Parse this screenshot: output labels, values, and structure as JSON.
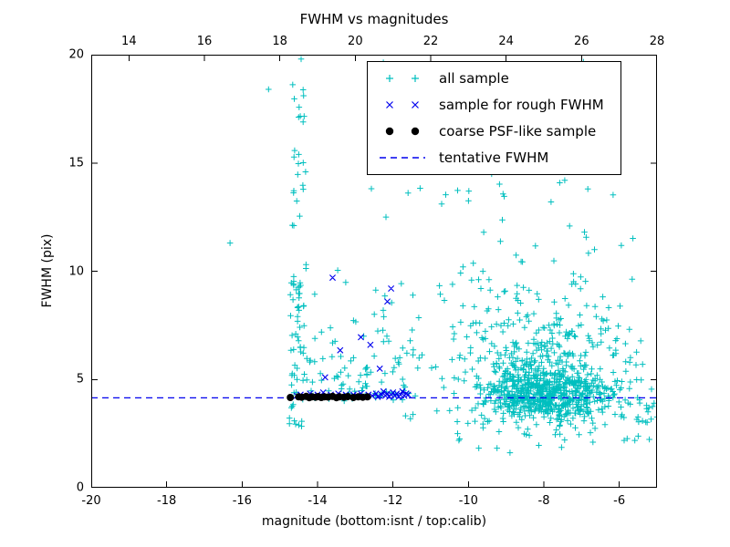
{
  "title": "FWHM vs magnitudes",
  "axes": {
    "xlabel": "magnitude (bottom:isnt / top:calib)",
    "ylabel": "FWHM (pix)",
    "xlim": [
      -20,
      -5
    ],
    "ylim": [
      0,
      20
    ],
    "x_bottom_ticks": [
      -20,
      -18,
      -16,
      -14,
      -12,
      -10,
      -8,
      -6
    ],
    "x_top_ticks": [
      14,
      16,
      18,
      20,
      22,
      24,
      26,
      28
    ],
    "y_ticks": [
      0,
      5,
      10,
      15,
      20
    ],
    "top_axis_offset": 33
  },
  "colors": {
    "all_sample": "#00bfbf",
    "rough_sample": "#0000ee",
    "psf_sample": "#000000",
    "tentative_line": "#0000ee",
    "axis": "#000000"
  },
  "legend": {
    "position": "upper right",
    "entries": [
      {
        "label": "all sample",
        "marker": "plus",
        "color": "#00bfbf"
      },
      {
        "label": "sample for rough FWHM",
        "marker": "x",
        "color": "#0000ee"
      },
      {
        "label": "coarse PSF-like sample",
        "marker": "dot",
        "color": "#000000"
      },
      {
        "label": "tentative FWHM",
        "marker": "dashed-line",
        "color": "#0000ee"
      }
    ]
  },
  "chart_data": {
    "type": "scatter",
    "title": "FWHM vs magnitudes",
    "xlabel": "magnitude (bottom:isnt / top:calib)",
    "ylabel": "FWHM (pix)",
    "xlim": [
      -20,
      -5
    ],
    "ylim": [
      0,
      20
    ],
    "grid": false,
    "series": [
      {
        "name": "all sample",
        "marker": "plus",
        "color": "#00bfbf",
        "seed": 7,
        "clusters": [
          {
            "n": 55,
            "x": {
              "type": "uniform",
              "min": -14.75,
              "max": -14.35
            },
            "y": {
              "type": "uniform",
              "min": 2.8,
              "max": 9.5
            }
          },
          {
            "n": 28,
            "x": {
              "type": "uniform",
              "min": -14.7,
              "max": -14.3
            },
            "y": {
              "type": "uniform",
              "min": 9.5,
              "max": 19.9
            }
          },
          {
            "n": 110,
            "x": {
              "type": "uniform",
              "min": -14.4,
              "max": -11.3
            },
            "y": {
              "type": "absgauss",
              "base": 4.0,
              "scale": 2.6,
              "max": 15
            }
          },
          {
            "n": 620,
            "x": {
              "type": "gauss",
              "mean": -7.9,
              "sd": 0.85,
              "min": -10.5,
              "max": -5.2
            },
            "y": {
              "type": "gauss",
              "mean": 4.3,
              "sd": 0.55,
              "min": 2.6,
              "max": 6.2
            }
          },
          {
            "n": 200,
            "x": {
              "type": "gauss",
              "mean": -8.1,
              "sd": 1.0,
              "min": -10.8,
              "max": -5.5
            },
            "y": {
              "type": "absgauss",
              "base": 4.6,
              "scale": 1.6,
              "max": 10
            }
          },
          {
            "n": 150,
            "x": {
              "type": "gauss",
              "mean": -8.3,
              "sd": 1.5,
              "min": -12.2,
              "max": -5.4
            },
            "y": {
              "type": "absgauss",
              "base": 5.5,
              "scale": 3.2,
              "max": 16
            }
          },
          {
            "n": 60,
            "x": {
              "type": "uniform",
              "min": -12.6,
              "max": -6.0
            },
            "y": {
              "type": "uniform",
              "min": 13.0,
              "max": 19.9
            }
          },
          {
            "n": 60,
            "x": {
              "type": "gauss",
              "mean": -8.6,
              "sd": 1.6,
              "min": -12.0,
              "max": -5.3
            },
            "y": {
              "type": "gauss",
              "mean": 3.0,
              "sd": 0.7,
              "min": 1.2,
              "max": 4.0
            }
          },
          {
            "n": 35,
            "x": {
              "type": "uniform",
              "min": -6.2,
              "max": -4.95
            },
            "y": {
              "type": "gauss",
              "mean": 4.2,
              "sd": 1.2,
              "min": 1.8,
              "max": 7.5
            }
          }
        ],
        "extra_points": [
          [
            -16.32,
            11.3
          ],
          [
            -15.3,
            18.4
          ]
        ]
      },
      {
        "name": "sample for rough FWHM",
        "marker": "x",
        "color": "#0000ee",
        "points": [
          [
            -14.55,
            4.25
          ],
          [
            -14.45,
            4.3
          ],
          [
            -14.3,
            4.2
          ],
          [
            -14.2,
            4.35
          ],
          [
            -14.1,
            4.25
          ],
          [
            -14.0,
            4.3
          ],
          [
            -13.9,
            4.2
          ],
          [
            -13.85,
            4.4
          ],
          [
            -13.75,
            4.25
          ],
          [
            -13.65,
            4.3
          ],
          [
            -13.55,
            4.2
          ],
          [
            -13.45,
            4.35
          ],
          [
            -13.35,
            4.25
          ],
          [
            -13.25,
            4.3
          ],
          [
            -13.15,
            4.2
          ],
          [
            -13.05,
            4.3
          ],
          [
            -12.95,
            4.25
          ],
          [
            -12.85,
            4.35
          ],
          [
            -12.75,
            4.2
          ],
          [
            -12.65,
            4.3
          ],
          [
            -12.55,
            4.25
          ],
          [
            -12.45,
            4.35
          ],
          [
            -12.4,
            4.2
          ],
          [
            -12.3,
            4.3
          ],
          [
            -12.25,
            4.45
          ],
          [
            -12.2,
            4.25
          ],
          [
            -12.15,
            4.35
          ],
          [
            -12.1,
            4.2
          ],
          [
            -12.05,
            4.3
          ],
          [
            -12.0,
            4.4
          ],
          [
            -11.95,
            4.25
          ],
          [
            -11.9,
            4.35
          ],
          [
            -11.85,
            4.2
          ],
          [
            -11.8,
            4.3
          ],
          [
            -11.75,
            4.45
          ],
          [
            -11.7,
            4.25
          ],
          [
            -11.65,
            4.35
          ],
          [
            -11.6,
            4.3
          ],
          [
            -13.6,
            9.7
          ],
          [
            -12.05,
            9.2
          ],
          [
            -12.15,
            8.6
          ],
          [
            -12.85,
            6.95
          ],
          [
            -12.6,
            6.6
          ],
          [
            -13.4,
            6.35
          ],
          [
            -13.8,
            5.1
          ],
          [
            -12.35,
            5.5
          ]
        ]
      },
      {
        "name": "coarse PSF-like sample",
        "marker": "dot",
        "color": "#000000",
        "points": [
          [
            -14.72,
            4.17
          ],
          [
            -14.5,
            4.2
          ],
          [
            -14.42,
            4.18
          ],
          [
            -14.3,
            4.22
          ],
          [
            -14.22,
            4.16
          ],
          [
            -14.15,
            4.2
          ],
          [
            -14.05,
            4.18
          ],
          [
            -13.98,
            4.21
          ],
          [
            -13.9,
            4.17
          ],
          [
            -13.82,
            4.2
          ],
          [
            -13.72,
            4.19
          ],
          [
            -13.6,
            4.22
          ],
          [
            -13.5,
            4.16
          ],
          [
            -13.42,
            4.2
          ],
          [
            -13.3,
            4.18
          ],
          [
            -13.2,
            4.21
          ],
          [
            -13.05,
            4.17
          ],
          [
            -12.92,
            4.2
          ],
          [
            -12.8,
            4.18
          ],
          [
            -12.68,
            4.2
          ]
        ]
      },
      {
        "name": "tentative FWHM",
        "marker": "dashed-line",
        "color": "#0000ee",
        "hline_y": 4.15
      }
    ]
  }
}
